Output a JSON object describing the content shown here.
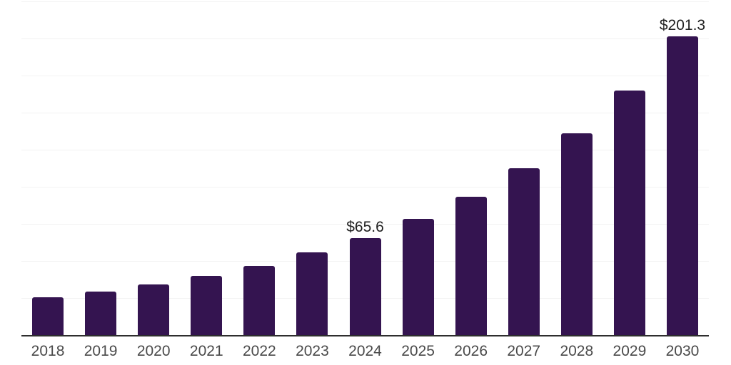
{
  "chart_data": {
    "type": "bar",
    "title": "",
    "categories": [
      "2018",
      "2019",
      "2020",
      "2021",
      "2022",
      "2023",
      "2024",
      "2025",
      "2026",
      "2027",
      "2028",
      "2029",
      "2030"
    ],
    "values": [
      25.4,
      29.2,
      34.0,
      39.8,
      46.5,
      55.6,
      65.6,
      78.5,
      93.4,
      112.5,
      136.0,
      164.8,
      201.3
    ],
    "value_labels": [
      {
        "category": "2024",
        "text": "$65.6"
      },
      {
        "category": "2030",
        "text": "$201.3"
      }
    ],
    "xlabel": "",
    "ylabel": "",
    "ylim": [
      0,
      225
    ],
    "grid_step": 25,
    "grid": "horizontal",
    "y_tick_labels_visible": false,
    "legend_position": "none",
    "colors": {
      "bar": "#341450",
      "grid_line": "#f2f2f2",
      "axis_line": "#2e2e2e",
      "tick_label": "#4a4a4a",
      "value_label": "#1f1f1f",
      "background": "#ffffff"
    }
  }
}
